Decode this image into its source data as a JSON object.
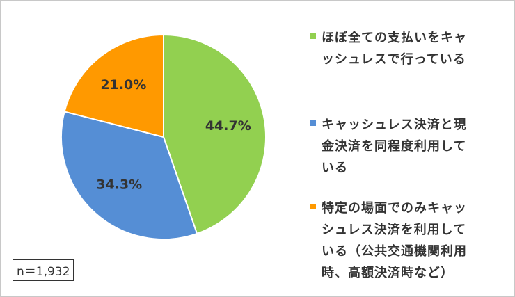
{
  "chart_data": {
    "type": "pie",
    "categories": [
      "ほぼ全ての支払いをキャッシュレスで行っている",
      "キャッシュレス決済と現金決済を同程度利用している",
      "特定の場面でのみキャッシュレス決済を利用している（公共交通機関利用時、高額決済時など）"
    ],
    "values": [
      44.7,
      34.3,
      21
    ],
    "value_labels": [
      "44.7%",
      "34.3%",
      "21.0%"
    ],
    "colors": [
      "#92d050",
      "#558ed5",
      "#ff9900"
    ],
    "note": "n＝1,932"
  }
}
